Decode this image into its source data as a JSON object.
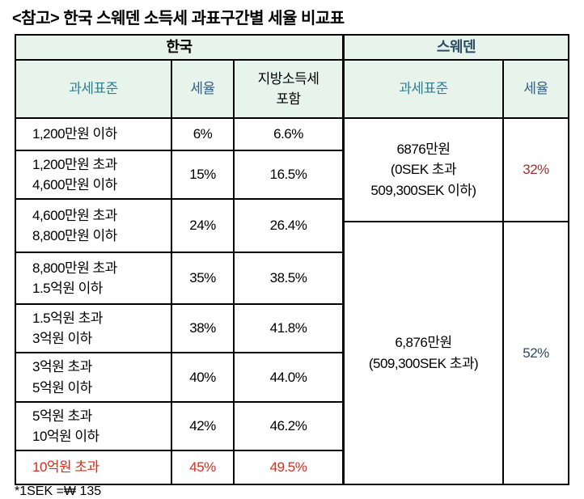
{
  "title": "<참고> 한국 스웨덴 소득세 과표구간별 세율 비교표",
  "footnote": "*1SEK =₩ 135",
  "colors": {
    "header_bg": "#e7f4ec",
    "teal": "#2f7f93",
    "navy": "#33608a",
    "sweden_title": "#2e4d63",
    "red": "#dd2b1c",
    "dark_red": "#aa2e28",
    "rate52": "#2b4a60"
  },
  "korea": {
    "title": "한국",
    "headers": {
      "base": "과세표준",
      "rate": "세율",
      "local": "지방소득세\n포함"
    },
    "rows": [
      {
        "base": "1,200만원 이하",
        "rate": "6%",
        "local": "6.6%"
      },
      {
        "base": "1,200만원 초과\n4,600만원 이하",
        "rate": "15%",
        "local": "16.5%"
      },
      {
        "base": "4,600만원 초과\n8,800만원 이하",
        "rate": "24%",
        "local": "26.4%"
      },
      {
        "base": "8,800만원 초과\n1.5억원 이하",
        "rate": "35%",
        "local": "38.5%"
      },
      {
        "base": "1.5억원 초과\n3억원 이하",
        "rate": "38%",
        "local": "41.8%"
      },
      {
        "base": "3억원 초과\n5억원 이하",
        "rate": "40%",
        "local": "44.0%"
      },
      {
        "base": "5억원 초과\n10억원 이하",
        "rate": "42%",
        "local": "46.2%"
      },
      {
        "base": "10억원 초과",
        "rate": "45%",
        "local": "49.5%"
      }
    ]
  },
  "sweden": {
    "title": "스웨덴",
    "headers": {
      "base": "과세표준",
      "rate": "세율"
    },
    "rows": [
      {
        "base": "6876만원\n(0SEK 초과\n509,300SEK 이하)",
        "rate": "32%"
      },
      {
        "base": "6,876만원\n(509,300SEK 초과)",
        "rate": "52%"
      }
    ]
  }
}
